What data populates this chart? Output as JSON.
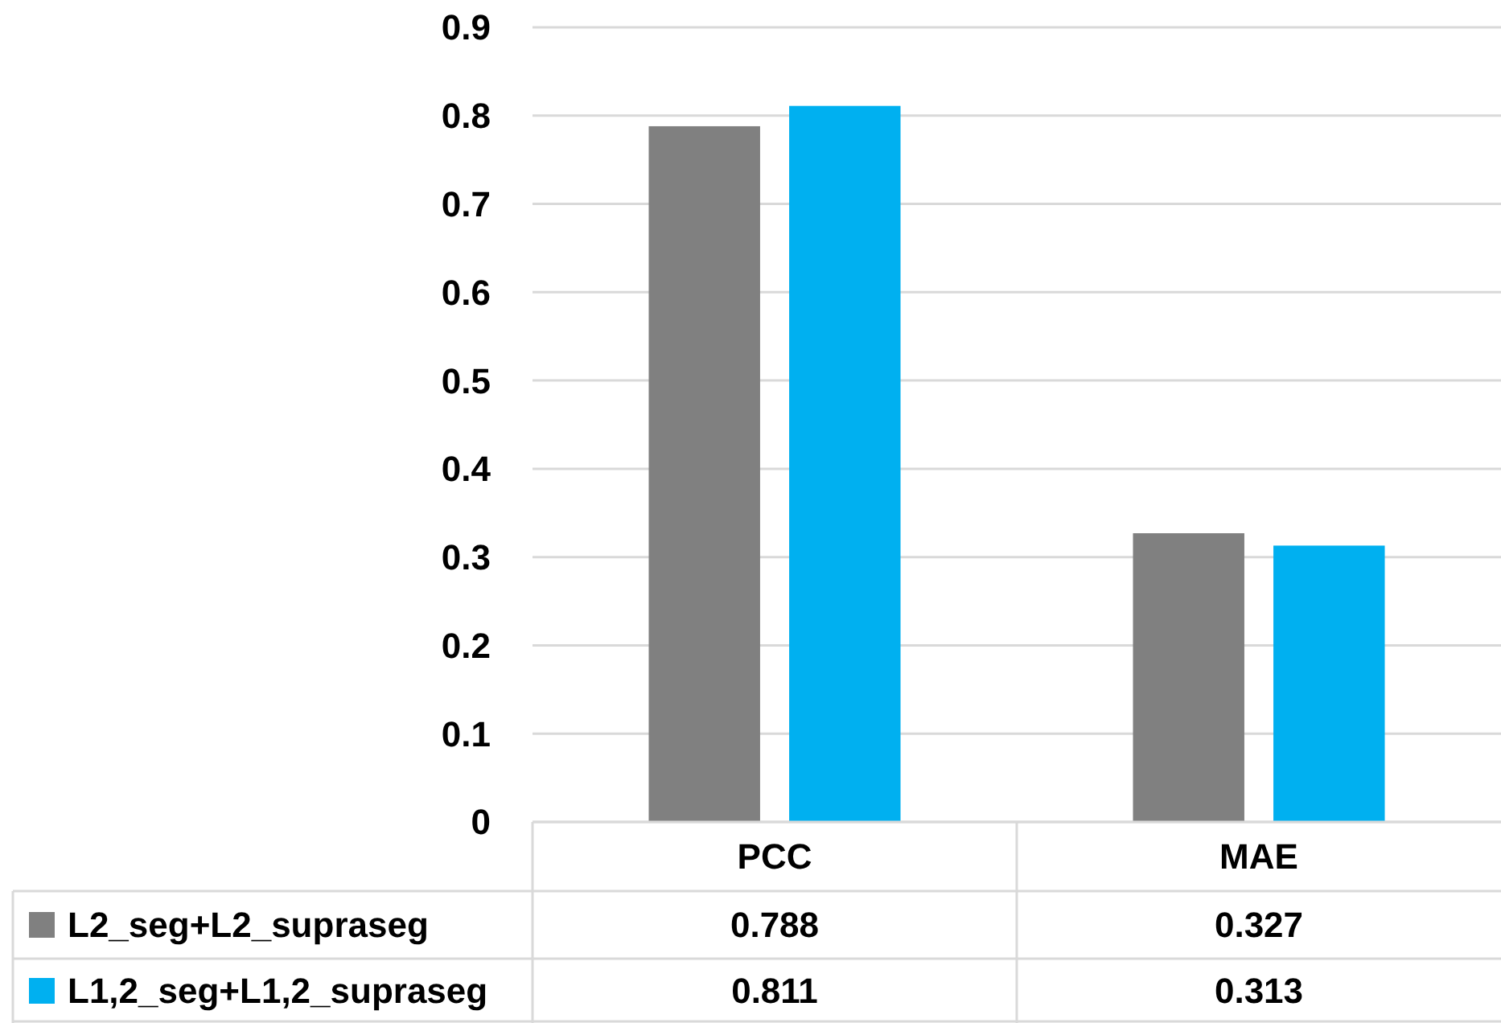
{
  "chart_data": {
    "type": "bar",
    "categories": [
      "PCC",
      "MAE"
    ],
    "series": [
      {
        "name": "L2_seg+L2_supraseg",
        "color": "#808080",
        "values": [
          0.788,
          0.327
        ]
      },
      {
        "name": "L1,2_seg+L1,2_supraseg",
        "color": "#00b0f0",
        "values": [
          0.811,
          0.313
        ]
      }
    ],
    "ylim": [
      0,
      0.9
    ],
    "yticks": [
      0,
      0.1,
      0.2,
      0.3,
      0.4,
      0.5,
      0.6,
      0.7,
      0.8,
      0.9
    ],
    "grid": "y",
    "legend": "bottom left",
    "data_labels": true
  }
}
